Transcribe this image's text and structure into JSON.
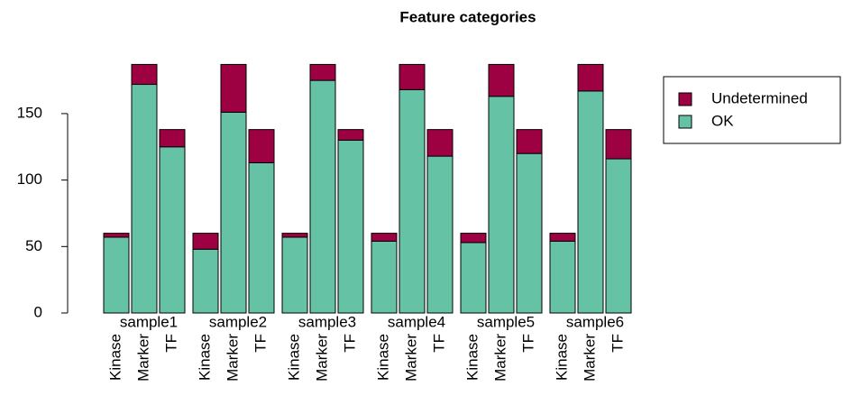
{
  "chart_data": {
    "type": "stacked-grouped-bar",
    "title": "Feature categories",
    "groups": [
      "sample1",
      "sample2",
      "sample3",
      "sample4",
      "sample5",
      "sample6"
    ],
    "categories": [
      "Kinase",
      "Marker",
      "TF",
      "Kinase",
      "Marker",
      "TF",
      "Kinase",
      "Marker",
      "TF",
      "Kinase",
      "Marker",
      "TF",
      "Kinase",
      "Marker",
      "TF",
      "Kinase",
      "Marker",
      "TF"
    ],
    "series": [
      {
        "name": "OK",
        "color": "#66c2a5",
        "values": [
          57,
          172,
          125,
          48,
          151,
          113,
          57,
          175,
          130,
          54,
          168,
          118,
          53,
          163,
          120,
          54,
          167,
          116
        ]
      },
      {
        "name": "Undetermined",
        "color": "#9e0142",
        "values": [
          3,
          15,
          13,
          12,
          36,
          25,
          3,
          12,
          8,
          6,
          19,
          20,
          7,
          24,
          18,
          6,
          20,
          22
        ]
      }
    ],
    "ylim": [
      0,
      190
    ],
    "yticks": [
      0,
      50,
      100,
      150
    ],
    "legend": "top-right"
  }
}
